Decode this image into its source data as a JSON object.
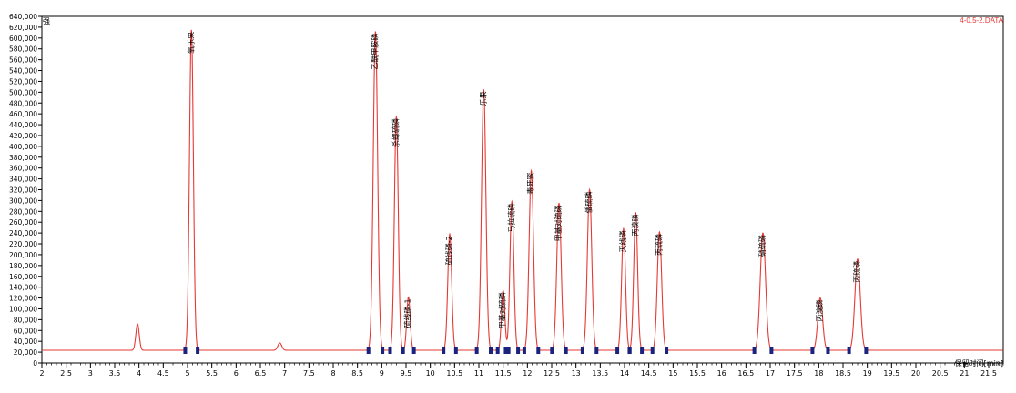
{
  "chart_data": {
    "type": "line",
    "title": "",
    "file_label": "4-0.5-2.DATA",
    "ylabel": "强",
    "xlabel": "保留时间[min]",
    "xlim": [
      2,
      21.8
    ],
    "ylim": [
      0,
      640000
    ],
    "xticks": [
      2,
      2.5,
      3,
      3.5,
      4,
      4.5,
      5,
      5.5,
      6,
      6.5,
      7,
      7.5,
      8,
      8.5,
      9,
      9.5,
      10,
      10.5,
      11,
      11.5,
      12,
      12.5,
      13,
      13.5,
      14,
      14.5,
      15,
      15.5,
      16,
      16.5,
      17,
      17.5,
      18,
      18.5,
      19,
      19.5,
      20,
      20.5,
      21,
      21.5
    ],
    "yticks": [
      0,
      20000,
      40000,
      60000,
      80000,
      100000,
      120000,
      140000,
      160000,
      180000,
      200000,
      220000,
      240000,
      260000,
      280000,
      300000,
      320000,
      340000,
      360000,
      380000,
      400000,
      420000,
      440000,
      460000,
      480000,
      500000,
      520000,
      540000,
      560000,
      580000,
      600000,
      620000,
      640000
    ],
    "ytick_labels": [
      "0",
      "20,000",
      "40,000",
      "60,000",
      "80,000",
      "100,000",
      "120,000",
      "140,000",
      "160,000",
      "180,000",
      "200,000",
      "220,000",
      "240,000",
      "260,000",
      "280,000",
      "300,000",
      "320,000",
      "340,000",
      "360,000",
      "380,000",
      "400,000",
      "420,000",
      "440,000",
      "460,000",
      "480,000",
      "500,000",
      "520,000",
      "540,000",
      "560,000",
      "580,000",
      "600,000",
      "620,000",
      "640,000"
    ],
    "baseline": 23500,
    "series_color": "#e53935",
    "peaks": [
      {
        "t": 3.97,
        "h": 72000,
        "w": 0.035,
        "label": ""
      },
      {
        "t": 5.08,
        "h": 615000,
        "w": 0.04,
        "label": "氧乐果"
      },
      {
        "t": 6.9,
        "h": 37000,
        "w": 0.04,
        "label": ""
      },
      {
        "t": 8.87,
        "h": 612000,
        "w": 0.045,
        "label": "乙酰甲胺磷"
      },
      {
        "t": 9.3,
        "h": 455000,
        "w": 0.04,
        "label": "杀螺硫磷"
      },
      {
        "t": 9.55,
        "h": 122000,
        "w": 0.035,
        "label": "硫线磷-1"
      },
      {
        "t": 10.4,
        "h": 238000,
        "w": 0.04,
        "label": "硫线磷-2"
      },
      {
        "t": 11.1,
        "h": 505000,
        "w": 0.045,
        "label": "乐果"
      },
      {
        "t": 11.5,
        "h": 134000,
        "w": 0.035,
        "label": "甲基对硫磷"
      },
      {
        "t": 11.68,
        "h": 298000,
        "w": 0.04,
        "label": "马拉硫磷"
      },
      {
        "t": 12.08,
        "h": 355000,
        "w": 0.045,
        "label": "毒死蜜"
      },
      {
        "t": 12.65,
        "h": 295000,
        "w": 0.045,
        "label": "甲基对硫磷"
      },
      {
        "t": 13.28,
        "h": 320000,
        "w": 0.045,
        "label": "倭硫磷"
      },
      {
        "t": 13.98,
        "h": 248000,
        "w": 0.04,
        "label": "灭线磷"
      },
      {
        "t": 14.23,
        "h": 278000,
        "w": 0.04,
        "label": "丙溴磷"
      },
      {
        "t": 14.72,
        "h": 242000,
        "w": 0.045,
        "label": "丙硫磷"
      },
      {
        "t": 16.85,
        "h": 240000,
        "w": 0.055,
        "label": "硝硫磷"
      },
      {
        "t": 18.03,
        "h": 120000,
        "w": 0.05,
        "label": "丙溴磷"
      },
      {
        "t": 18.8,
        "h": 192000,
        "w": 0.055,
        "label": "丙硫磷"
      }
    ]
  }
}
